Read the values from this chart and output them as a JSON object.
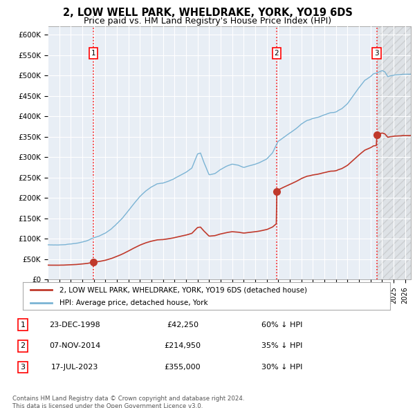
{
  "title": "2, LOW WELL PARK, WHELDRAKE, YORK, YO19 6DS",
  "subtitle": "Price paid vs. HM Land Registry's House Price Index (HPI)",
  "title_fontsize": 10.5,
  "subtitle_fontsize": 9,
  "xlim": [
    1995.0,
    2026.5
  ],
  "ylim": [
    0,
    620000
  ],
  "yticks": [
    0,
    50000,
    100000,
    150000,
    200000,
    250000,
    300000,
    350000,
    400000,
    450000,
    500000,
    550000,
    600000
  ],
  "ytick_labels": [
    "£0",
    "£50K",
    "£100K",
    "£150K",
    "£200K",
    "£250K",
    "£300K",
    "£350K",
    "£400K",
    "£450K",
    "£500K",
    "£550K",
    "£600K"
  ],
  "xticks": [
    1995,
    1996,
    1997,
    1998,
    1999,
    2000,
    2001,
    2002,
    2003,
    2004,
    2005,
    2006,
    2007,
    2008,
    2009,
    2010,
    2011,
    2012,
    2013,
    2014,
    2015,
    2016,
    2017,
    2018,
    2019,
    2020,
    2021,
    2022,
    2023,
    2024,
    2025,
    2026
  ],
  "bg_color": "#e8eef5",
  "hpi_line_color": "#7ab3d4",
  "price_line_color": "#c0392b",
  "sale1_x": 1998.97,
  "sale1_y": 42250,
  "sale1_label": "1",
  "sale2_x": 2014.85,
  "sale2_y": 214950,
  "sale2_label": "2",
  "sale3_x": 2023.54,
  "sale3_y": 355000,
  "sale3_label": "3",
  "legend_line1": "2, LOW WELL PARK, WHELDRAKE, YORK, YO19 6DS (detached house)",
  "legend_line2": "HPI: Average price, detached house, York",
  "table_rows": [
    {
      "num": "1",
      "date": "23-DEC-1998",
      "price": "£42,250",
      "pct": "60% ↓ HPI"
    },
    {
      "num": "2",
      "date": "07-NOV-2014",
      "price": "£214,950",
      "pct": "35% ↓ HPI"
    },
    {
      "num": "3",
      "date": "17-JUL-2023",
      "price": "£355,000",
      "pct": "30% ↓ HPI"
    }
  ],
  "footnote": "Contains HM Land Registry data © Crown copyright and database right 2024.\nThis data is licensed under the Open Government Licence v3.0."
}
